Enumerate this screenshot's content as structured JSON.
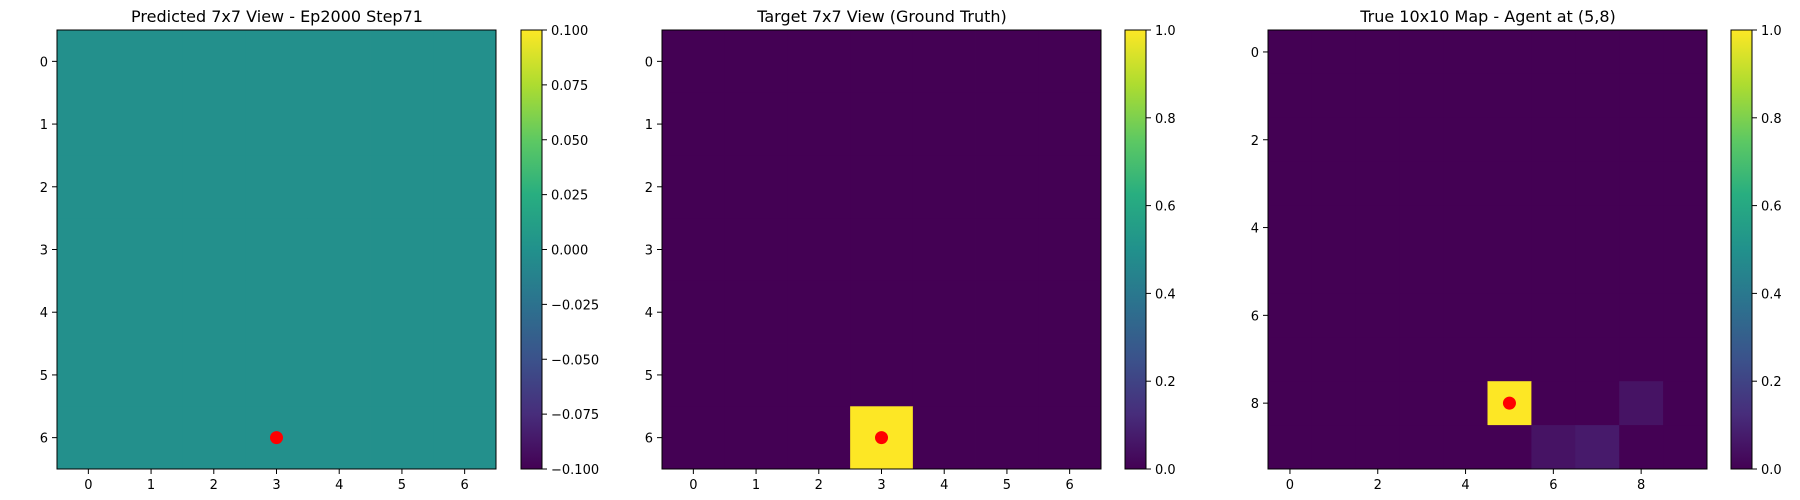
{
  "chart_data": [
    {
      "type": "heatmap",
      "title": "Predicted 7x7 View - Ep2000 Step71",
      "grid_size": 7,
      "xticks": [
        0,
        1,
        2,
        3,
        4,
        5,
        6
      ],
      "yticks": [
        0,
        1,
        2,
        3,
        4,
        5,
        6
      ],
      "values": [
        [
          0,
          0,
          0,
          0,
          0,
          0,
          0
        ],
        [
          0,
          0,
          0,
          0,
          0,
          0,
          0
        ],
        [
          0,
          0,
          0,
          0,
          0,
          0,
          0
        ],
        [
          0,
          0,
          0,
          0,
          0,
          0,
          0
        ],
        [
          0,
          0,
          0,
          0,
          0,
          0,
          0
        ],
        [
          0,
          0,
          0,
          0,
          0,
          0,
          0
        ],
        [
          0,
          0,
          0,
          0,
          0,
          0,
          0
        ]
      ],
      "colorscale": "viridis",
      "vmin": -0.1,
      "vmax": 0.1,
      "colorbar_ticks": [
        -0.1,
        -0.075,
        -0.05,
        -0.025,
        0.0,
        0.025,
        0.05,
        0.075,
        0.1
      ],
      "colorbar_labels": [
        "−0.100",
        "−0.075",
        "−0.050",
        "−0.025",
        "0.000",
        "0.025",
        "0.050",
        "0.075",
        "0.100"
      ],
      "marker": {
        "x": 3,
        "y": 6,
        "color": "#ff0000"
      }
    },
    {
      "type": "heatmap",
      "title": "Target 7x7 View (Ground Truth)",
      "grid_size": 7,
      "xticks": [
        0,
        1,
        2,
        3,
        4,
        5,
        6
      ],
      "yticks": [
        0,
        1,
        2,
        3,
        4,
        5,
        6
      ],
      "values": [
        [
          0,
          0,
          0,
          0,
          0,
          0,
          0
        ],
        [
          0,
          0,
          0,
          0,
          0,
          0,
          0
        ],
        [
          0,
          0,
          0,
          0,
          0,
          0,
          0
        ],
        [
          0,
          0,
          0,
          0,
          0,
          0,
          0
        ],
        [
          0,
          0,
          0,
          0,
          0,
          0,
          0
        ],
        [
          0,
          0,
          0,
          0,
          0,
          0,
          0
        ],
        [
          0,
          0,
          0,
          1,
          0,
          0,
          0
        ]
      ],
      "colorscale": "viridis",
      "vmin": 0.0,
      "vmax": 1.0,
      "colorbar_ticks": [
        0.0,
        0.2,
        0.4,
        0.6,
        0.8,
        1.0
      ],
      "colorbar_labels": [
        "0.0",
        "0.2",
        "0.4",
        "0.6",
        "0.8",
        "1.0"
      ],
      "marker": {
        "x": 3,
        "y": 6,
        "color": "#ff0000"
      }
    },
    {
      "type": "heatmap",
      "title": "True 10x10 Map - Agent at (5,8)",
      "grid_size": 10,
      "xticks": [
        0,
        2,
        4,
        6,
        8
      ],
      "yticks": [
        0,
        2,
        4,
        6,
        8
      ],
      "values": [
        [
          0,
          0,
          0,
          0,
          0,
          0,
          0,
          0,
          0,
          0
        ],
        [
          0,
          0,
          0,
          0,
          0,
          0,
          0,
          0,
          0,
          0
        ],
        [
          0,
          0,
          0,
          0,
          0,
          0,
          0,
          0,
          0,
          0
        ],
        [
          0,
          0,
          0,
          0,
          0,
          0,
          0,
          0,
          0,
          0
        ],
        [
          0,
          0,
          0,
          0,
          0,
          0,
          0,
          0,
          0,
          0
        ],
        [
          0,
          0,
          0,
          0,
          0,
          0,
          0,
          0,
          0,
          0
        ],
        [
          0,
          0,
          0,
          0,
          0,
          0,
          0,
          0,
          0,
          0
        ],
        [
          0,
          0,
          0,
          0,
          0,
          0,
          0,
          0,
          0,
          0
        ],
        [
          0,
          0,
          0,
          0,
          0,
          1,
          0,
          0,
          0.05,
          0
        ],
        [
          0,
          0,
          0,
          0,
          0,
          0,
          0.05,
          0.07,
          0,
          0
        ]
      ],
      "colorscale": "viridis",
      "vmin": 0.0,
      "vmax": 1.0,
      "colorbar_ticks": [
        0.0,
        0.2,
        0.4,
        0.6,
        0.8,
        1.0
      ],
      "colorbar_labels": [
        "0.0",
        "0.2",
        "0.4",
        "0.6",
        "0.8",
        "1.0"
      ],
      "marker": {
        "x": 5,
        "y": 8,
        "color": "#ff0000"
      }
    }
  ]
}
